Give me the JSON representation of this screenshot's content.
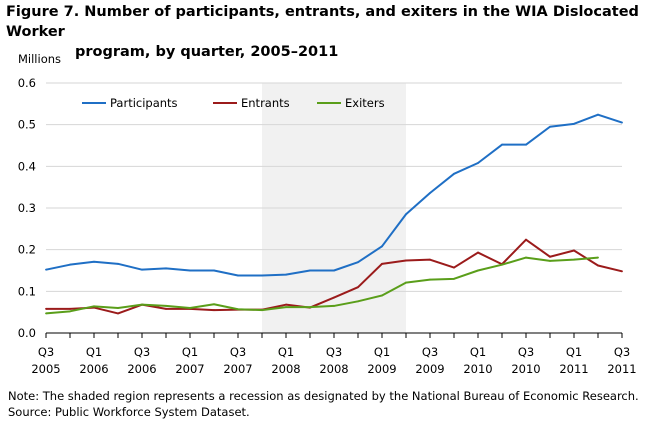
{
  "figure": {
    "title_line1": "Figure 7. Number of participants, entrants, and exiters in the WIA Dislocated Worker",
    "title_line2": "program, by quarter, 2005–2011",
    "units": "Millions",
    "note": "Note: The shaded region represents a recession as designated by the National Bureau of Economic Research.",
    "source": "Source: Public Workforce System Dataset."
  },
  "chart_data": {
    "type": "line",
    "title": "Number of participants, entrants, and exiters in the WIA Dislocated Worker program, by quarter, 2005–2011",
    "ylabel": "Millions",
    "xlabel": "",
    "ylim": [
      0,
      0.6
    ],
    "yticks": [
      "0.0",
      "0.1",
      "0.2",
      "0.3",
      "0.4",
      "0.5",
      "0.6"
    ],
    "x": [
      "Q3 2005",
      "Q4 2005",
      "Q1 2006",
      "Q2 2006",
      "Q3 2006",
      "Q4 2006",
      "Q1 2007",
      "Q2 2007",
      "Q3 2007",
      "Q4 2007",
      "Q1 2008",
      "Q2 2008",
      "Q3 2008",
      "Q4 2008",
      "Q1 2009",
      "Q2 2009",
      "Q3 2009",
      "Q4 2009",
      "Q1 2010",
      "Q2 2010",
      "Q3 2010",
      "Q4 2010",
      "Q1 2011",
      "Q2 2011",
      "Q3 2011"
    ],
    "xtick_labels": [
      {
        "index": 0,
        "q": "Q3",
        "year": "2005"
      },
      {
        "index": 2,
        "q": "Q1",
        "year": "2006"
      },
      {
        "index": 4,
        "q": "Q3",
        "year": "2006"
      },
      {
        "index": 6,
        "q": "Q1",
        "year": "2007"
      },
      {
        "index": 8,
        "q": "Q3",
        "year": "2007"
      },
      {
        "index": 10,
        "q": "Q1",
        "year": "2008"
      },
      {
        "index": 12,
        "q": "Q3",
        "year": "2008"
      },
      {
        "index": 14,
        "q": "Q1",
        "year": "2009"
      },
      {
        "index": 16,
        "q": "Q3",
        "year": "2009"
      },
      {
        "index": 18,
        "q": "Q1",
        "year": "2010"
      },
      {
        "index": 20,
        "q": "Q3",
        "year": "2010"
      },
      {
        "index": 22,
        "q": "Q1",
        "year": "2011"
      },
      {
        "index": 24,
        "q": "Q3",
        "year": "2011"
      }
    ],
    "recession": {
      "start": "Q4 2007",
      "end": "Q2 2009"
    },
    "legend_position": "top-left",
    "grid": "horizontal",
    "series": [
      {
        "name": "Participants",
        "color": "#1f6fc5",
        "values": [
          0.152,
          0.164,
          0.171,
          0.166,
          0.152,
          0.155,
          0.15,
          0.15,
          0.138,
          0.138,
          0.14,
          0.15,
          0.15,
          0.17,
          0.208,
          0.285,
          0.336,
          0.382,
          0.408,
          0.452,
          0.452,
          0.495,
          0.502,
          0.524,
          0.505
        ]
      },
      {
        "name": "Entrants",
        "color": "#9b1b1b",
        "values": [
          0.058,
          0.058,
          0.061,
          0.047,
          0.068,
          0.058,
          0.058,
          0.055,
          0.056,
          0.056,
          0.068,
          0.061,
          0.085,
          0.11,
          0.166,
          0.174,
          0.176,
          0.157,
          0.193,
          0.165,
          0.224,
          0.183,
          0.198,
          0.162,
          0.148
        ]
      },
      {
        "name": "Exiters",
        "color": "#5a9e1a",
        "values": [
          0.047,
          0.052,
          0.064,
          0.06,
          0.068,
          0.065,
          0.06,
          0.069,
          0.057,
          0.055,
          0.062,
          0.062,
          0.065,
          0.076,
          0.09,
          0.121,
          0.128,
          0.13,
          0.15,
          0.164,
          0.181,
          0.173,
          0.176,
          0.181,
          null
        ]
      }
    ]
  }
}
